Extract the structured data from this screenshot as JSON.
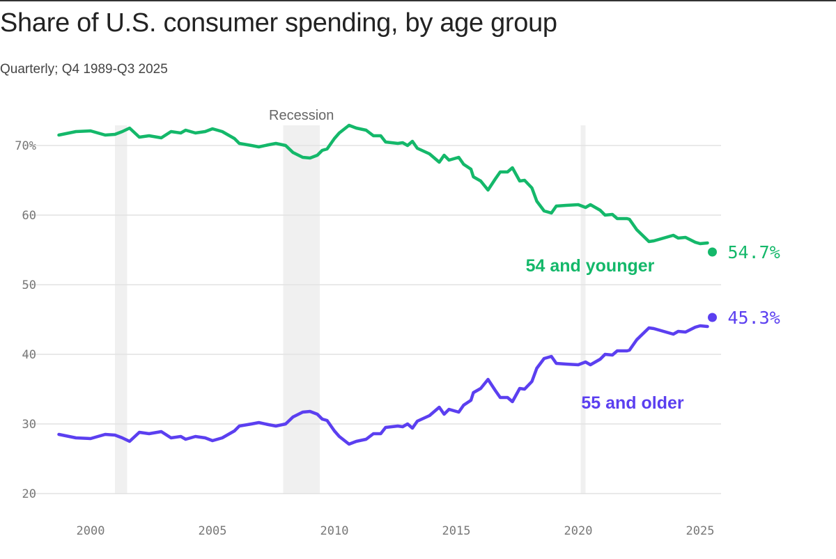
{
  "title": "Share of U.S. consumer spending, by age group",
  "subtitle": "Quarterly; Q4 1989-Q3 2025",
  "chart_data": {
    "type": "line",
    "title": "Share of U.S. consumer spending, by age group",
    "subtitle": "Quarterly; Q4 1989-Q3 2025",
    "xlabel": "",
    "ylabel": "",
    "xlim": [
      1998.5,
      2025.8
    ],
    "ylim": [
      20,
      73
    ],
    "grid": true,
    "y_ticks": [
      {
        "value": 70,
        "label": "70%"
      },
      {
        "value": 60,
        "label": "60"
      },
      {
        "value": 50,
        "label": "50"
      },
      {
        "value": 40,
        "label": "40"
      },
      {
        "value": 30,
        "label": "30"
      },
      {
        "value": 20,
        "label": "20"
      }
    ],
    "x_ticks": [
      {
        "value": 2000,
        "label": "2000"
      },
      {
        "value": 2005,
        "label": "2005"
      },
      {
        "value": 2010,
        "label": "2010"
      },
      {
        "value": 2015,
        "label": "2015"
      },
      {
        "value": 2020,
        "label": "2020"
      },
      {
        "value": 2025,
        "label": "2025"
      }
    ],
    "recessions": [
      {
        "start": 2001.0,
        "end": 2001.5
      },
      {
        "start": 2007.9,
        "end": 2009.4,
        "label": "Recession"
      },
      {
        "start": 2020.1,
        "end": 2020.3
      }
    ],
    "x": [
      1998.7,
      1999.4,
      2000,
      2000.6,
      2001,
      2001.3,
      2001.6,
      2002,
      2002.4,
      2002.9,
      2003.3,
      2003.7,
      2003.9,
      2004.3,
      2004.7,
      2005,
      2005.4,
      2005.9,
      2006.1,
      2006.6,
      2006.9,
      2007.3,
      2007.6,
      2008,
      2008.3,
      2008.7,
      2009,
      2009.3,
      2009.5,
      2009.7,
      2010,
      2010.2,
      2010.6,
      2010.9,
      2011.3,
      2011.6,
      2011.9,
      2012.1,
      2012.6,
      2012.8,
      2013,
      2013.2,
      2013.4,
      2013.9,
      2014.3,
      2014.5,
      2014.7,
      2015.1,
      2015.3,
      2015.6,
      2015.7,
      2016,
      2016.3,
      2016.6,
      2016.8,
      2017.1,
      2017.3,
      2017.6,
      2017.8,
      2018.1,
      2018.3,
      2018.6,
      2018.9,
      2019.1,
      2019.5,
      2020,
      2020.3,
      2020.5,
      2020.9,
      2021.1,
      2021.4,
      2021.6,
      2022,
      2022.1,
      2022.4,
      2022.9,
      2023.1,
      2023.4,
      2023.9,
      2024.1,
      2024.4,
      2024.8,
      2025,
      2025.3,
      2025.5
    ],
    "series": [
      {
        "name": "54 and younger",
        "color": "#14b86a",
        "end_label": "54.7%",
        "values": [
          71.5,
          72.0,
          72.1,
          71.5,
          71.6,
          72.0,
          72.5,
          71.2,
          71.4,
          71.1,
          72.0,
          71.8,
          72.2,
          71.8,
          72.0,
          72.4,
          72.0,
          71.0,
          70.3,
          70.0,
          69.8,
          70.1,
          70.3,
          70.0,
          69.0,
          68.3,
          68.2,
          68.6,
          69.3,
          69.5,
          71.0,
          71.8,
          72.9,
          72.5,
          72.2,
          71.4,
          71.4,
          70.5,
          70.3,
          70.4,
          70.0,
          70.6,
          69.6,
          68.8,
          67.6,
          68.6,
          67.9,
          68.3,
          67.3,
          66.6,
          65.5,
          64.9,
          63.6,
          65.2,
          66.2,
          66.2,
          66.8,
          64.9,
          65.0,
          63.9,
          62.0,
          60.6,
          60.3,
          61.3,
          61.4,
          61.5,
          61.1,
          61.5,
          60.7,
          60.0,
          60.1,
          59.5,
          59.5,
          59.4,
          57.9,
          56.2,
          56.3,
          56.6,
          57.1,
          56.7,
          56.8,
          56.1,
          55.9,
          56.0,
          54.7
        ]
      },
      {
        "name": "55 and older",
        "color": "#5b3ff0",
        "end_label": "45.3%",
        "values": [
          28.5,
          28.0,
          27.9,
          28.5,
          28.4,
          28.0,
          27.5,
          28.8,
          28.6,
          28.9,
          28.0,
          28.2,
          27.8,
          28.2,
          28.0,
          27.6,
          28.0,
          29.0,
          29.7,
          30.0,
          30.2,
          29.9,
          29.7,
          30.0,
          31.0,
          31.7,
          31.8,
          31.4,
          30.7,
          30.5,
          29.0,
          28.2,
          27.1,
          27.5,
          27.8,
          28.6,
          28.6,
          29.5,
          29.7,
          29.6,
          30.0,
          29.4,
          30.4,
          31.2,
          32.4,
          31.4,
          32.1,
          31.7,
          32.7,
          33.4,
          34.5,
          35.1,
          36.4,
          34.8,
          33.8,
          33.8,
          33.2,
          35.1,
          35.0,
          36.1,
          38.0,
          39.4,
          39.7,
          38.7,
          38.6,
          38.5,
          38.9,
          38.5,
          39.3,
          40.0,
          39.9,
          40.5,
          40.5,
          40.6,
          42.1,
          43.8,
          43.7,
          43.4,
          42.9,
          43.3,
          43.2,
          43.9,
          44.1,
          44.0,
          45.3
        ]
      }
    ]
  }
}
